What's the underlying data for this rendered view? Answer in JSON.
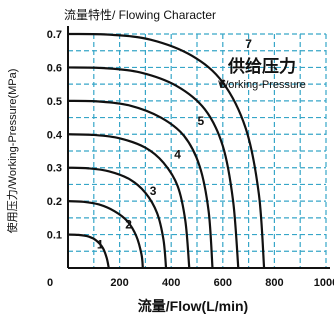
{
  "chart_data": {
    "type": "line",
    "title": "流量特性/ Flowing Character",
    "xlabel": "流量/Flow(L/min)",
    "ylabel": "使用压力/Working-Pressure(MPa)",
    "annotation_cn": "供给压力",
    "annotation_en": "Working-Pressure",
    "xlim": [
      0,
      1000
    ],
    "ylim": [
      0,
      0.7
    ],
    "xticks": [
      0,
      200,
      400,
      600,
      800,
      1000
    ],
    "yticks": [
      0,
      0.1,
      0.2,
      0.3,
      0.4,
      0.5,
      0.6,
      0.7
    ],
    "grid": true,
    "colors": {
      "curves": "#111111",
      "grid": "#37a6c8",
      "axis": "#111111",
      "background": "#ffffff"
    },
    "series": [
      {
        "name": "1",
        "label_pos": [
          125,
          0.07
        ],
        "x": [
          0,
          40,
          80,
          110,
          135,
          150,
          158
        ],
        "y": [
          0.1,
          0.099,
          0.094,
          0.082,
          0.06,
          0.03,
          0.0
        ]
      },
      {
        "name": "2",
        "label_pos": [
          235,
          0.13
        ],
        "x": [
          0,
          60,
          120,
          180,
          230,
          265,
          285,
          290
        ],
        "y": [
          0.2,
          0.198,
          0.19,
          0.17,
          0.14,
          0.095,
          0.04,
          0.0
        ]
      },
      {
        "name": "3",
        "label_pos": [
          330,
          0.23
        ],
        "x": [
          0,
          80,
          160,
          240,
          300,
          345,
          370,
          380
        ],
        "y": [
          0.3,
          0.298,
          0.289,
          0.265,
          0.225,
          0.165,
          0.085,
          0.0
        ]
      },
      {
        "name": "4",
        "label_pos": [
          425,
          0.34
        ],
        "x": [
          0,
          100,
          200,
          300,
          370,
          425,
          455,
          470
        ],
        "y": [
          0.4,
          0.398,
          0.388,
          0.36,
          0.315,
          0.245,
          0.14,
          0.0
        ]
      },
      {
        "name": "5",
        "label_pos": [
          515,
          0.44
        ],
        "x": [
          0,
          120,
          240,
          360,
          450,
          510,
          545,
          560
        ],
        "y": [
          0.5,
          0.498,
          0.486,
          0.45,
          0.395,
          0.305,
          0.17,
          0.0
        ]
      },
      {
        "name": "6",
        "label_pos": [
          600,
          0.55
        ],
        "x": [
          0,
          140,
          280,
          420,
          530,
          600,
          640,
          660
        ],
        "y": [
          0.6,
          0.598,
          0.585,
          0.545,
          0.475,
          0.365,
          0.2,
          0.0
        ]
      },
      {
        "name": "7",
        "label_pos": [
          700,
          0.67
        ],
        "x": [
          0,
          160,
          320,
          480,
          600,
          690,
          740,
          760
        ],
        "y": [
          0.7,
          0.698,
          0.683,
          0.635,
          0.555,
          0.415,
          0.22,
          0.0
        ]
      }
    ]
  }
}
